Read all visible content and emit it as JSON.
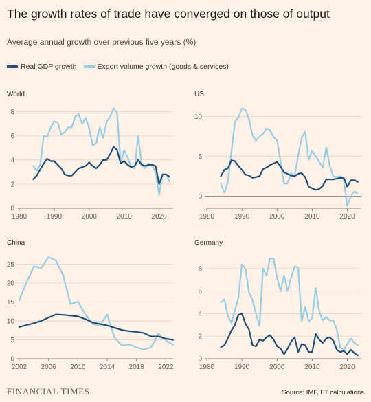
{
  "header": {
    "title": "The growth rates of trade have converged on those of output",
    "subtitle": "Average annual growth over previous five years (%)"
  },
  "legend": {
    "items": [
      {
        "label": "Real GDP growth",
        "color": "#1F4E79"
      },
      {
        "label": "Export volume growth (goods & services)",
        "color": "#96CDE6"
      }
    ]
  },
  "footer": {
    "logo": "FINANCIAL TIMES",
    "source": "Source: IMF, FT calculations"
  },
  "colors": {
    "gdp": "#1F4E79",
    "exports": "#96CDE6",
    "grid": "#E3D9CF",
    "axis": "#66605C"
  },
  "chart_data": [
    {
      "type": "line",
      "title": "World",
      "xlim": [
        1980,
        2024
      ],
      "ylim": [
        0,
        8.6
      ],
      "xticks": [
        1980,
        1990,
        2000,
        2010,
        2020
      ],
      "yticks": [
        0,
        2,
        4,
        6,
        8
      ],
      "series": [
        {
          "name": "Real GDP growth",
          "x": [
            1984,
            1985,
            1986,
            1987,
            1988,
            1989,
            1990,
            1991,
            1992,
            1993,
            1994,
            1995,
            1996,
            1997,
            1998,
            1999,
            2000,
            2001,
            2002,
            2003,
            2004,
            2005,
            2006,
            2007,
            2008,
            2009,
            2010,
            2011,
            2012,
            2013,
            2014,
            2015,
            2016,
            2017,
            2018,
            2019,
            2020,
            2021,
            2022,
            2023
          ],
          "values": [
            2.4,
            2.7,
            3.2,
            3.7,
            4.1,
            3.9,
            3.9,
            3.6,
            3.3,
            2.8,
            2.7,
            2.7,
            3.0,
            3.3,
            3.4,
            3.5,
            3.8,
            3.5,
            3.3,
            3.6,
            4.0,
            4.0,
            4.5,
            5.1,
            4.8,
            3.7,
            3.9,
            3.6,
            3.4,
            3.5,
            4.0,
            3.6,
            3.5,
            3.6,
            3.6,
            3.5,
            2.0,
            2.8,
            2.8,
            2.6
          ]
        },
        {
          "name": "Export volume growth (goods & services)",
          "x": [
            1984,
            1985,
            1986,
            1987,
            1988,
            1989,
            1990,
            1991,
            1992,
            1993,
            1994,
            1995,
            1996,
            1997,
            1998,
            1999,
            2000,
            2001,
            2002,
            2003,
            2004,
            2005,
            2006,
            2007,
            2008,
            2009,
            2010,
            2011,
            2012,
            2013,
            2014,
            2015,
            2016,
            2017,
            2018,
            2019,
            2020,
            2021,
            2022,
            2023
          ],
          "values": [
            3.5,
            3.1,
            3.6,
            6.0,
            5.9,
            6.7,
            7.2,
            7.1,
            6.1,
            6.3,
            6.7,
            6.7,
            7.6,
            7.8,
            7.0,
            7.5,
            6.6,
            5.2,
            5.4,
            6.7,
            5.8,
            7.2,
            7.6,
            8.3,
            7.9,
            3.7,
            4.8,
            4.2,
            3.4,
            3.3,
            6.0,
            3.6,
            3.3,
            3.7,
            3.5,
            3.0,
            1.1,
            2.8,
            2.8,
            2.2
          ]
        }
      ]
    },
    {
      "type": "line",
      "title": "US",
      "xlim": [
        1980,
        2024
      ],
      "ylim": [
        -1.5,
        11.5
      ],
      "xticks": [
        1980,
        1990,
        2000,
        2010,
        2020
      ],
      "yticks": [
        0,
        5,
        10
      ],
      "series": [
        {
          "name": "Real GDP growth",
          "x": [
            1984,
            1985,
            1986,
            1987,
            1988,
            1989,
            1990,
            1991,
            1992,
            1993,
            1994,
            1995,
            1996,
            1997,
            1998,
            1999,
            2000,
            2001,
            2002,
            2003,
            2004,
            2005,
            2006,
            2007,
            2008,
            2009,
            2010,
            2011,
            2012,
            2013,
            2014,
            2015,
            2016,
            2017,
            2018,
            2019,
            2020,
            2021,
            2022,
            2023
          ],
          "values": [
            2.5,
            3.3,
            3.5,
            4.5,
            4.4,
            3.8,
            3.3,
            2.7,
            2.6,
            2.3,
            2.4,
            2.5,
            3.4,
            3.6,
            3.9,
            4.1,
            4.3,
            3.7,
            3.0,
            2.8,
            2.6,
            2.5,
            2.8,
            2.9,
            2.4,
            1.2,
            1.0,
            0.8,
            0.9,
            1.3,
            2.1,
            2.1,
            2.1,
            2.2,
            2.3,
            2.3,
            1.2,
            2.0,
            2.0,
            1.8
          ]
        },
        {
          "name": "Export volume growth (goods & services)",
          "x": [
            1984,
            1985,
            1986,
            1987,
            1988,
            1989,
            1990,
            1991,
            1992,
            1993,
            1994,
            1995,
            1996,
            1997,
            1998,
            1999,
            2000,
            2001,
            2002,
            2003,
            2004,
            2005,
            2006,
            2007,
            2008,
            2009,
            2010,
            2011,
            2012,
            2013,
            2014,
            2015,
            2016,
            2017,
            2018,
            2019,
            2020,
            2021,
            2022,
            2023
          ],
          "values": [
            1.6,
            0.4,
            1.8,
            5.5,
            9.3,
            9.9,
            11.0,
            10.8,
            9.7,
            7.6,
            7.0,
            7.5,
            7.8,
            8.5,
            8.3,
            7.4,
            7.0,
            4.3,
            1.6,
            1.6,
            2.9,
            2.5,
            5.1,
            7.3,
            8.1,
            4.5,
            5.7,
            5.0,
            4.3,
            3.6,
            6.1,
            3.8,
            2.5,
            2.4,
            2.5,
            2.0,
            -1.2,
            0.0,
            0.6,
            0.3
          ]
        }
      ]
    },
    {
      "type": "line",
      "title": "China",
      "xlim": [
        2002,
        2023
      ],
      "ylim": [
        0,
        28
      ],
      "xticks": [
        2002,
        2006,
        2010,
        2014,
        2018,
        2022
      ],
      "yticks": [
        0,
        5,
        10,
        15,
        20,
        25
      ],
      "series": [
        {
          "name": "Real GDP growth",
          "x": [
            2002,
            2003,
            2004,
            2005,
            2006,
            2007,
            2008,
            2009,
            2010,
            2011,
            2012,
            2013,
            2014,
            2015,
            2016,
            2017,
            2018,
            2019,
            2020,
            2021,
            2022,
            2023
          ],
          "values": [
            8.4,
            8.9,
            9.4,
            10.0,
            10.9,
            11.7,
            11.6,
            11.4,
            11.2,
            10.5,
            9.6,
            9.2,
            8.8,
            8.2,
            7.6,
            7.3,
            7.1,
            6.8,
            5.9,
            5.9,
            5.3,
            5.0
          ]
        },
        {
          "name": "Export volume growth (goods & services)",
          "x": [
            2002,
            2003,
            2004,
            2005,
            2006,
            2007,
            2008,
            2009,
            2010,
            2011,
            2012,
            2013,
            2014,
            2015,
            2016,
            2017,
            2018,
            2019,
            2020,
            2021,
            2022,
            2023
          ],
          "values": [
            15.5,
            20.2,
            24.4,
            24.0,
            26.9,
            26.0,
            22.0,
            14.4,
            15.1,
            11.8,
            9.2,
            8.7,
            11.7,
            5.6,
            3.5,
            3.8,
            3.0,
            2.4,
            3.0,
            6.6,
            4.8,
            3.7
          ]
        }
      ]
    },
    {
      "type": "line",
      "title": "Germany",
      "xlim": [
        1980,
        2024
      ],
      "ylim": [
        0,
        9.4
      ],
      "xticks": [
        1980,
        1990,
        2000,
        2010,
        2020
      ],
      "yticks": [
        0,
        2,
        4,
        6,
        8
      ],
      "series": [
        {
          "name": "Real GDP growth",
          "x": [
            1984,
            1985,
            1986,
            1987,
            1988,
            1989,
            1990,
            1991,
            1992,
            1993,
            1994,
            1995,
            1996,
            1997,
            1998,
            1999,
            2000,
            2001,
            2002,
            2003,
            2004,
            2005,
            2006,
            2007,
            2008,
            2009,
            2010,
            2011,
            2012,
            2013,
            2014,
            2015,
            2016,
            2017,
            2018,
            2019,
            2020,
            2021,
            2022,
            2023
          ],
          "values": [
            1.0,
            1.2,
            1.8,
            2.5,
            3.0,
            3.9,
            4.0,
            3.1,
            2.6,
            1.2,
            1.1,
            1.7,
            1.6,
            1.9,
            2.1,
            1.7,
            1.1,
            0.9,
            0.4,
            0.9,
            1.5,
            1.9,
            0.6,
            1.3,
            1.2,
            0.6,
            0.6,
            2.2,
            1.7,
            1.4,
            1.8,
            1.9,
            1.6,
            0.8,
            0.6,
            0.7,
            0.4,
            0.8,
            0.5,
            0.3
          ]
        },
        {
          "name": "Export volume growth (goods & services)",
          "x": [
            1984,
            1985,
            1986,
            1987,
            1988,
            1989,
            1990,
            1991,
            1992,
            1993,
            1994,
            1995,
            1996,
            1997,
            1998,
            1999,
            2000,
            2001,
            2002,
            2003,
            2004,
            2005,
            2006,
            2007,
            2008,
            2009,
            2010,
            2011,
            2012,
            2013,
            2014,
            2015,
            2016,
            2017,
            2018,
            2019,
            2020,
            2021,
            2022,
            2023
          ],
          "values": [
            5.0,
            5.3,
            3.8,
            3.2,
            4.3,
            5.4,
            8.4,
            8.0,
            5.9,
            5.2,
            4.0,
            2.9,
            8.0,
            7.4,
            8.9,
            8.9,
            7.2,
            6.0,
            7.4,
            6.0,
            7.2,
            8.2,
            8.1,
            3.3,
            4.6,
            3.3,
            3.6,
            6.3,
            4.2,
            3.4,
            3.7,
            3.4,
            3.4,
            2.6,
            1.0,
            0.8,
            1.3,
            1.8,
            1.4,
            1.2
          ]
        }
      ]
    }
  ]
}
